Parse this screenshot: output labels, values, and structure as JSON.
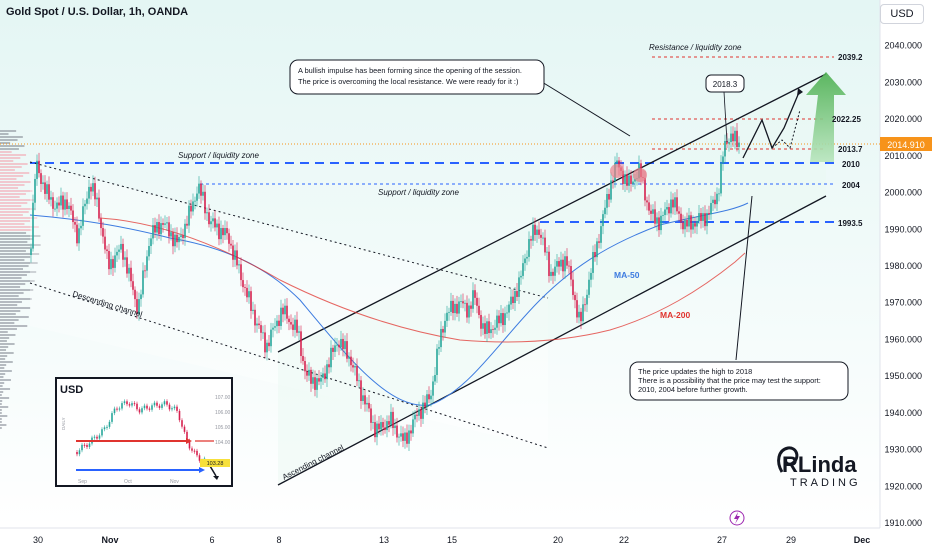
{
  "header": {
    "title": "Gold Spot / U.S. Dollar, 1h, OANDA",
    "currency_button": "USD"
  },
  "chart_data": {
    "type": "candlestick",
    "y_range": [
      1910,
      2050
    ],
    "y_ticks": [
      "2040.000",
      "2030.000",
      "2020.000",
      "2010.000",
      "2000.000",
      "1990.000",
      "1980.000",
      "1970.000",
      "1960.000",
      "1950.000",
      "1940.000",
      "1930.000",
      "1920.000",
      "1910.000"
    ],
    "x_ticks": [
      "30",
      "Nov",
      "6",
      "8",
      "13",
      "15",
      "20",
      "22",
      "27",
      "29",
      "Dec"
    ],
    "current_price": "2014.910",
    "levels": [
      {
        "label": "2039.2",
        "value": 2039.2
      },
      {
        "label": "2022.25",
        "value": 2022.25
      },
      {
        "label": "2013.7",
        "value": 2013.7
      },
      {
        "label": "2010",
        "value": 2010
      },
      {
        "label": "2004",
        "value": 2004
      },
      {
        "label": "1993.5",
        "value": 1993.5
      }
    ],
    "peak_label": "2018.3",
    "indicators": [
      {
        "name": "MA-50",
        "color": "#3d7be0"
      },
      {
        "name": "MA-200",
        "color": "#e0342f"
      }
    ],
    "annotations": {
      "resistance_zone": "Resistance / liquidity zone",
      "support_zone_1": "Support / liquidity zone",
      "support_zone_2": "Support / liquidity zone",
      "descending_channel": "Descending channel",
      "ascending_channel": "Ascending channel",
      "callout_top_1": "A bullish impulse has been forming since the opening of the session.",
      "callout_top_2": "The price is overcoming the local resistance. We were ready for it :)",
      "callout_bottom_1": "The price updates the high to 2018",
      "callout_bottom_2": "There is a possibility that the price may test the support:",
      "callout_bottom_3": "2010, 2004 before further growth."
    },
    "inset": {
      "title": "USD",
      "y_ticks": [
        "107.00",
        "106.00",
        "105.00",
        "104.00"
      ],
      "x_ticks": [
        "Sep",
        "Oct",
        "Nov"
      ],
      "price_tag": "103.28",
      "side_label": "DAILY"
    },
    "colors": {
      "up": "#26a69a",
      "down": "#d6204e",
      "level": "#2962ff",
      "resistance": "#e0342f",
      "price": "#f7931a"
    }
  },
  "branding": {
    "line1": "RLinda",
    "line2": "TRADING"
  }
}
